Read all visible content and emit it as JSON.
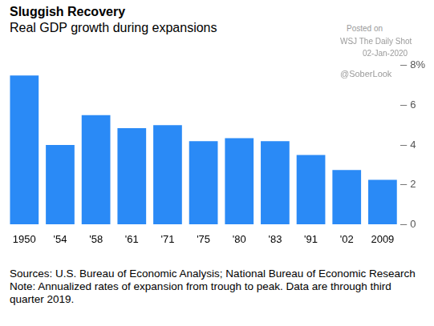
{
  "chart_data": {
    "type": "bar",
    "title": "Sluggish Recovery",
    "subtitle": "Real GDP growth during expansions",
    "categories": [
      "1950",
      "'54",
      "'58",
      "'61",
      "'71",
      "'75",
      "'80",
      "'83",
      "'91",
      "'02",
      "2009"
    ],
    "values": [
      7.5,
      4.0,
      5.5,
      4.85,
      5.0,
      4.2,
      4.35,
      4.2,
      3.5,
      2.75,
      2.25
    ],
    "color": "#2a8af6",
    "ylim": [
      0,
      8
    ],
    "yticks": [
      0,
      2,
      4,
      6,
      {
        "value": 8,
        "label": "8%"
      }
    ],
    "grid": false,
    "annotations": [
      "Posted on",
      "WSJ  The Daily Shot",
      "02-Jan-2020",
      "@SoberLook"
    ],
    "source": "Sources: U.S. Bureau of Economic Analysis; National Bureau of Economic Research",
    "note": "Note: Annualized rates of expansion from trough to peak. Data are through third quarter 2019."
  }
}
